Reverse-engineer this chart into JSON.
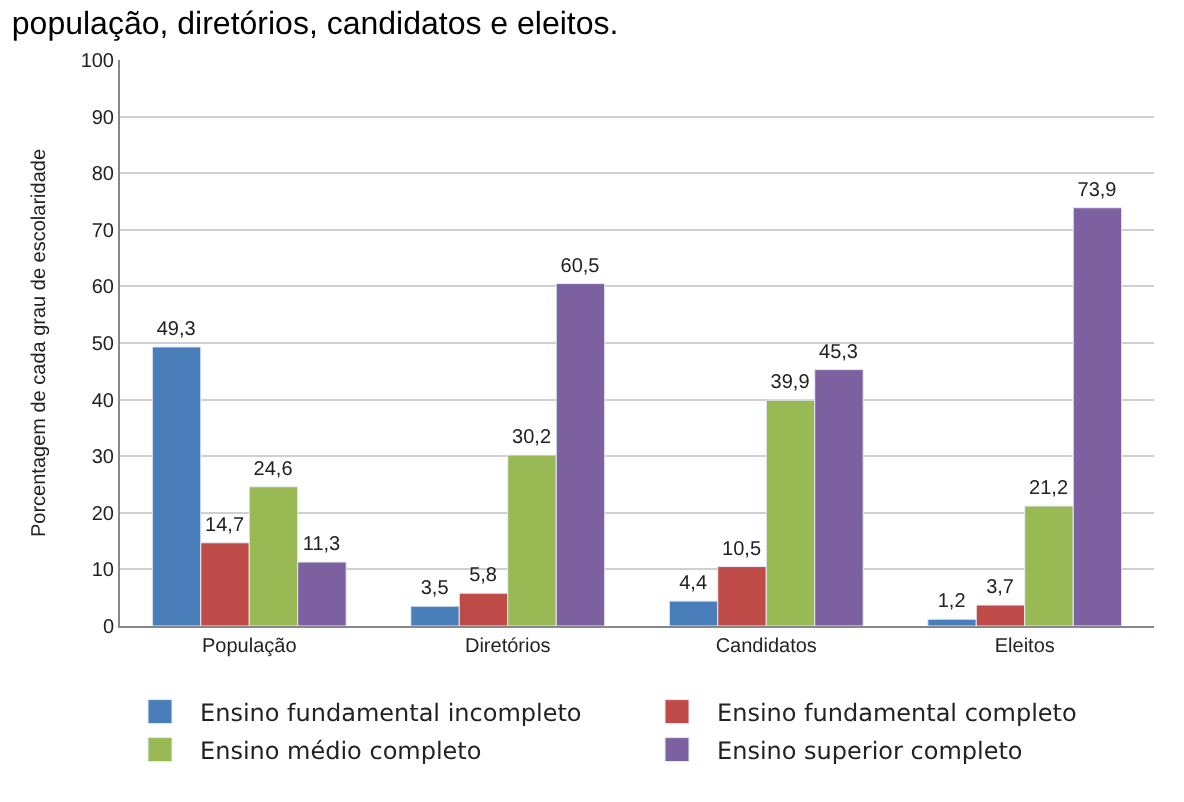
{
  "chart_data": {
    "type": "bar",
    "title": "população, diretórios, candidatos e eleitos.",
    "ylabel": "Porcentagem de cada grau de escolaridade",
    "categories": [
      "População",
      "Diretórios",
      "Candidatos",
      "Eleitos"
    ],
    "series": [
      {
        "name": "Ensino fundamental incompleto",
        "color": "#4a7ebb",
        "values": [
          49.3,
          3.5,
          4.4,
          1.2
        ],
        "value_labels": [
          "49,3",
          "3,5",
          "4,4",
          "1,2"
        ]
      },
      {
        "name": "Ensino fundamental completo",
        "color": "#be4b48",
        "values": [
          14.7,
          5.8,
          10.5,
          3.7
        ],
        "value_labels": [
          "14,7",
          "5,8",
          "10,5",
          "3,7"
        ]
      },
      {
        "name": "Ensino médio completo",
        "color": "#98b954",
        "values": [
          24.6,
          30.2,
          39.9,
          21.2
        ],
        "value_labels": [
          "24,6",
          "30,2",
          "39,9",
          "21,2"
        ]
      },
      {
        "name": "Ensino superior completo",
        "color": "#7d60a0",
        "values": [
          11.3,
          60.5,
          45.3,
          73.9
        ],
        "value_labels": [
          "11,3",
          "60,5",
          "45,3",
          "73,9"
        ]
      }
    ],
    "ylim": [
      0,
      100
    ],
    "yticks": [
      0,
      10,
      20,
      30,
      40,
      50,
      60,
      70,
      80,
      90,
      100
    ],
    "grid": "y",
    "legend": "bottom"
  }
}
